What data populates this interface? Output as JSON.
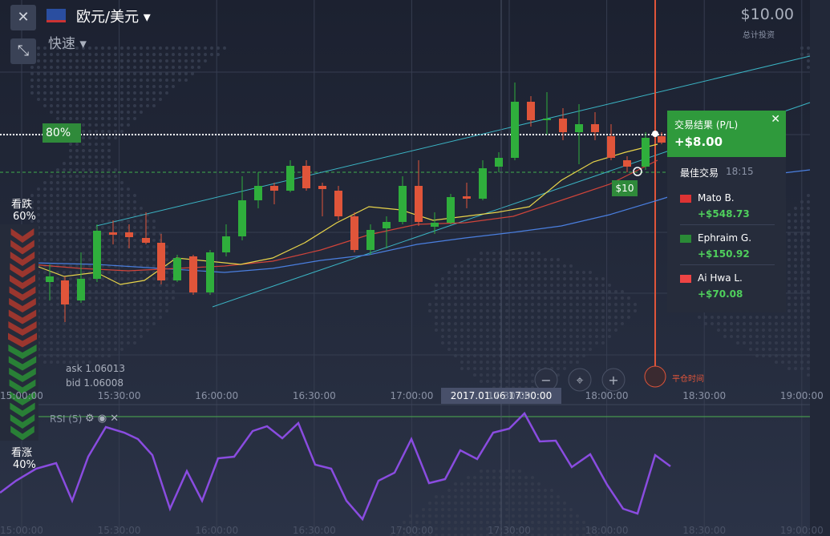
{
  "header": {
    "pair": "欧元/美元",
    "mode": "快速",
    "amount": "$10.00",
    "amount_label": "总计投资"
  },
  "payout": "80%",
  "sentiment": {
    "put_label": "看跌",
    "put_pct": "60%",
    "call_label": "看涨",
    "call_pct": "40%"
  },
  "quotes": {
    "ask": "ask 1.06013",
    "bid": "bid 1.06008"
  },
  "time_axis": [
    "15:00:00",
    "15:30:00",
    "16:00:00",
    "16:30:00",
    "17:00:00",
    "17:30:00",
    "18:00:00",
    "18:30:00",
    "19:00:00"
  ],
  "crosshair_time": "2017.01.06 17:30:00",
  "close_time_label": "平仓时间",
  "indicator": "RSI (5)",
  "trade_marker": "$10",
  "result": {
    "title": "交易结果 (P/L)",
    "profit": "+$8.00",
    "best_label": "最佳交易",
    "best_time": "18:15",
    "traders": [
      {
        "name": "Mato B.",
        "profit": "+$548.73"
      },
      {
        "name": "Ephraim G.",
        "profit": "+$150.92"
      },
      {
        "name": "Ai Hwa L.",
        "profit": "+$70.08"
      }
    ]
  }
}
